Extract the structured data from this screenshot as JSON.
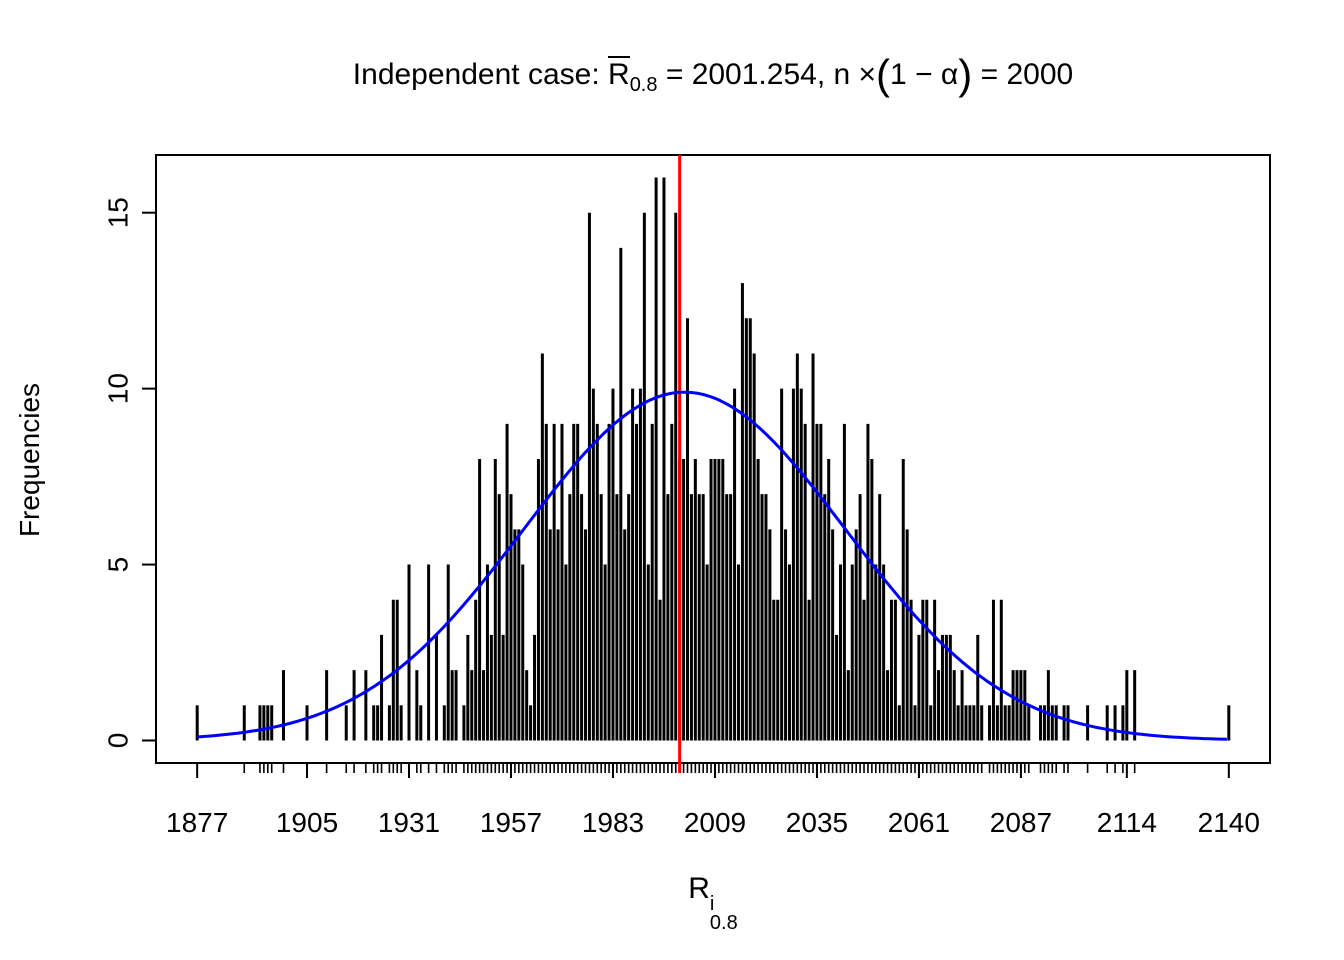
{
  "title": {
    "prefix": "Independent case: ",
    "r": "R",
    "r_sub": "0.8",
    "mid": " = 2001.254,  n ",
    "times": "×",
    "paren_open": "(",
    "paren_body": "1 − α",
    "paren_close": ")",
    "suffix": " = 2000"
  },
  "x_axis": {
    "label_base": "R",
    "label_sup": "i",
    "label_sub": "0.8"
  },
  "y_axis": {
    "label": "Frequencies"
  },
  "colors": {
    "spike": "#000000",
    "curve": "#0000FF",
    "ref_line": "#FF0000",
    "axis": "#000000",
    "background": "#FFFFFF"
  },
  "chart_data": {
    "type": "bar",
    "subtype": "frequency-spike-plot-with-normal-curve",
    "title": "Independent case: R̄_0.8 = 2001.254, n × (1 − α) = 2000",
    "xlabel": "R^i_0.8",
    "ylabel": "Frequencies",
    "xlim": [
      1866.5,
      2150.5
    ],
    "ylim": [
      -0.64,
      16.64
    ],
    "x_ticks": [
      1877,
      1905,
      1931,
      1957,
      1983,
      2009,
      2035,
      2061,
      2087,
      2114,
      2140
    ],
    "y_ticks": [
      0,
      5,
      10,
      15
    ],
    "grid": false,
    "red_vline_x": 2000,
    "normal_curve": {
      "mean": 2001.254,
      "sd": 41,
      "peak": 9.9,
      "x_start": 1877,
      "x_end": 2140
    },
    "rug_at_data_values": true,
    "spikes": [
      [
        1877,
        1
      ],
      [
        1889,
        1
      ],
      [
        1893,
        1
      ],
      [
        1894,
        1
      ],
      [
        1895,
        1
      ],
      [
        1896,
        1
      ],
      [
        1899,
        2
      ],
      [
        1905,
        1
      ],
      [
        1910,
        2
      ],
      [
        1915,
        1
      ],
      [
        1917,
        2
      ],
      [
        1920,
        2
      ],
      [
        1922,
        1
      ],
      [
        1923,
        1
      ],
      [
        1924,
        3
      ],
      [
        1926,
        1
      ],
      [
        1927,
        4
      ],
      [
        1928,
        4
      ],
      [
        1929,
        1
      ],
      [
        1931,
        5
      ],
      [
        1933,
        2
      ],
      [
        1934,
        1
      ],
      [
        1936,
        5
      ],
      [
        1938,
        3
      ],
      [
        1940,
        1
      ],
      [
        1941,
        5
      ],
      [
        1942,
        2
      ],
      [
        1943,
        2
      ],
      [
        1945,
        1
      ],
      [
        1946,
        3
      ],
      [
        1947,
        2
      ],
      [
        1948,
        4
      ],
      [
        1949,
        8
      ],
      [
        1950,
        2
      ],
      [
        1951,
        5
      ],
      [
        1952,
        3
      ],
      [
        1953,
        8
      ],
      [
        1954,
        7
      ],
      [
        1955,
        3
      ],
      [
        1956,
        9
      ],
      [
        1957,
        7
      ],
      [
        1958,
        6
      ],
      [
        1959,
        6
      ],
      [
        1960,
        5
      ],
      [
        1961,
        2
      ],
      [
        1962,
        1
      ],
      [
        1963,
        3
      ],
      [
        1964,
        8
      ],
      [
        1965,
        11
      ],
      [
        1966,
        9
      ],
      [
        1967,
        6
      ],
      [
        1968,
        9
      ],
      [
        1969,
        6
      ],
      [
        1970,
        9
      ],
      [
        1971,
        5
      ],
      [
        1972,
        7
      ],
      [
        1973,
        9
      ],
      [
        1974,
        9
      ],
      [
        1975,
        7
      ],
      [
        1976,
        6
      ],
      [
        1977,
        15
      ],
      [
        1978,
        10
      ],
      [
        1979,
        9
      ],
      [
        1980,
        7
      ],
      [
        1981,
        5
      ],
      [
        1982,
        9
      ],
      [
        1983,
        10
      ],
      [
        1984,
        7
      ],
      [
        1985,
        14
      ],
      [
        1986,
        6
      ],
      [
        1987,
        7
      ],
      [
        1988,
        10
      ],
      [
        1989,
        9
      ],
      [
        1990,
        10
      ],
      [
        1991,
        15
      ],
      [
        1992,
        5
      ],
      [
        1993,
        9
      ],
      [
        1994,
        16
      ],
      [
        1995,
        4
      ],
      [
        1996,
        16
      ],
      [
        1997,
        7
      ],
      [
        1998,
        9
      ],
      [
        1999,
        15
      ],
      [
        2000,
        8
      ],
      [
        2001,
        8
      ],
      [
        2002,
        12
      ],
      [
        2003,
        7
      ],
      [
        2004,
        8
      ],
      [
        2005,
        7
      ],
      [
        2006,
        7
      ],
      [
        2007,
        5
      ],
      [
        2008,
        8
      ],
      [
        2009,
        8
      ],
      [
        2010,
        8
      ],
      [
        2011,
        8
      ],
      [
        2012,
        7
      ],
      [
        2013,
        7
      ],
      [
        2014,
        10
      ],
      [
        2015,
        5
      ],
      [
        2016,
        13
      ],
      [
        2017,
        12
      ],
      [
        2018,
        12
      ],
      [
        2019,
        11
      ],
      [
        2020,
        8
      ],
      [
        2021,
        7
      ],
      [
        2022,
        7
      ],
      [
        2023,
        6
      ],
      [
        2024,
        4
      ],
      [
        2025,
        4
      ],
      [
        2026,
        10
      ],
      [
        2027,
        6
      ],
      [
        2028,
        5
      ],
      [
        2029,
        10
      ],
      [
        2030,
        11
      ],
      [
        2031,
        10
      ],
      [
        2032,
        9
      ],
      [
        2033,
        4
      ],
      [
        2034,
        11
      ],
      [
        2035,
        9
      ],
      [
        2036,
        9
      ],
      [
        2037,
        7
      ],
      [
        2038,
        8
      ],
      [
        2039,
        6
      ],
      [
        2040,
        3
      ],
      [
        2041,
        5
      ],
      [
        2042,
        9
      ],
      [
        2043,
        2
      ],
      [
        2044,
        5
      ],
      [
        2045,
        6
      ],
      [
        2046,
        7
      ],
      [
        2047,
        4
      ],
      [
        2048,
        9
      ],
      [
        2049,
        8
      ],
      [
        2050,
        5
      ],
      [
        2051,
        7
      ],
      [
        2052,
        5
      ],
      [
        2053,
        2
      ],
      [
        2054,
        4
      ],
      [
        2055,
        4
      ],
      [
        2056,
        1
      ],
      [
        2057,
        8
      ],
      [
        2058,
        6
      ],
      [
        2059,
        4
      ],
      [
        2060,
        1
      ],
      [
        2061,
        3
      ],
      [
        2062,
        4
      ],
      [
        2063,
        4
      ],
      [
        2064,
        1
      ],
      [
        2065,
        4
      ],
      [
        2066,
        2
      ],
      [
        2067,
        3
      ],
      [
        2068,
        3
      ],
      [
        2069,
        3
      ],
      [
        2070,
        2
      ],
      [
        2071,
        1
      ],
      [
        2072,
        2
      ],
      [
        2073,
        1
      ],
      [
        2074,
        1
      ],
      [
        2075,
        1
      ],
      [
        2076,
        3
      ],
      [
        2077,
        1
      ],
      [
        2079,
        1
      ],
      [
        2080,
        4
      ],
      [
        2081,
        1
      ],
      [
        2082,
        4
      ],
      [
        2083,
        1
      ],
      [
        2084,
        1
      ],
      [
        2085,
        2
      ],
      [
        2086,
        2
      ],
      [
        2087,
        2
      ],
      [
        2088,
        2
      ],
      [
        2089,
        1
      ],
      [
        2092,
        1
      ],
      [
        2093,
        1
      ],
      [
        2094,
        2
      ],
      [
        2095,
        1
      ],
      [
        2096,
        1
      ],
      [
        2098,
        1
      ],
      [
        2099,
        1
      ],
      [
        2104,
        1
      ],
      [
        2109,
        1
      ],
      [
        2111,
        1
      ],
      [
        2113,
        1
      ],
      [
        2114,
        2
      ],
      [
        2116,
        2
      ],
      [
        2140,
        1
      ]
    ]
  }
}
